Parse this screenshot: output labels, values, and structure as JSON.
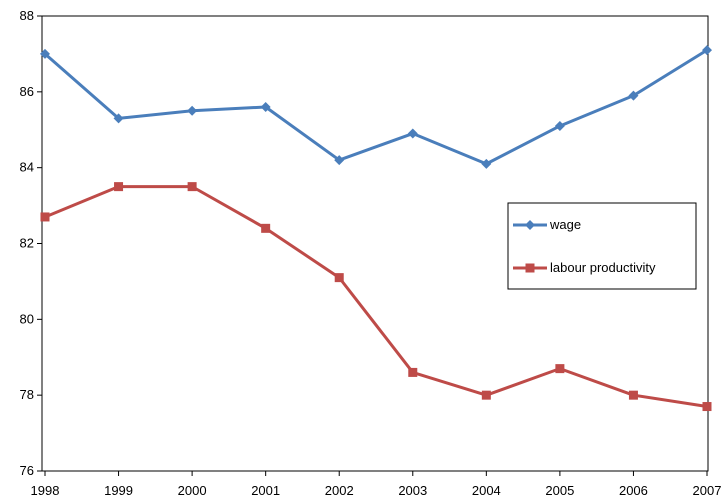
{
  "chart_data": {
    "type": "line",
    "title": "",
    "xlabel": "",
    "ylabel": "",
    "x": [
      "1998",
      "1999",
      "2000",
      "2001",
      "2002",
      "2003",
      "2004",
      "2005",
      "2006",
      "2007"
    ],
    "ylim": [
      76,
      88
    ],
    "yticks": [
      "76",
      "78",
      "80",
      "82",
      "84",
      "86",
      "88"
    ],
    "grid": false,
    "legend_position": "right",
    "series": [
      {
        "name": "wage",
        "color": "#4a7ebb",
        "marker": "diamond",
        "values": [
          87.0,
          85.3,
          85.5,
          85.6,
          84.2,
          84.9,
          84.1,
          85.1,
          85.9,
          87.1
        ]
      },
      {
        "name": "labour productivity",
        "color": "#be4b48",
        "marker": "square",
        "values": [
          82.7,
          83.5,
          83.5,
          82.4,
          81.1,
          78.6,
          78.0,
          78.7,
          78.0,
          77.7
        ]
      }
    ]
  }
}
